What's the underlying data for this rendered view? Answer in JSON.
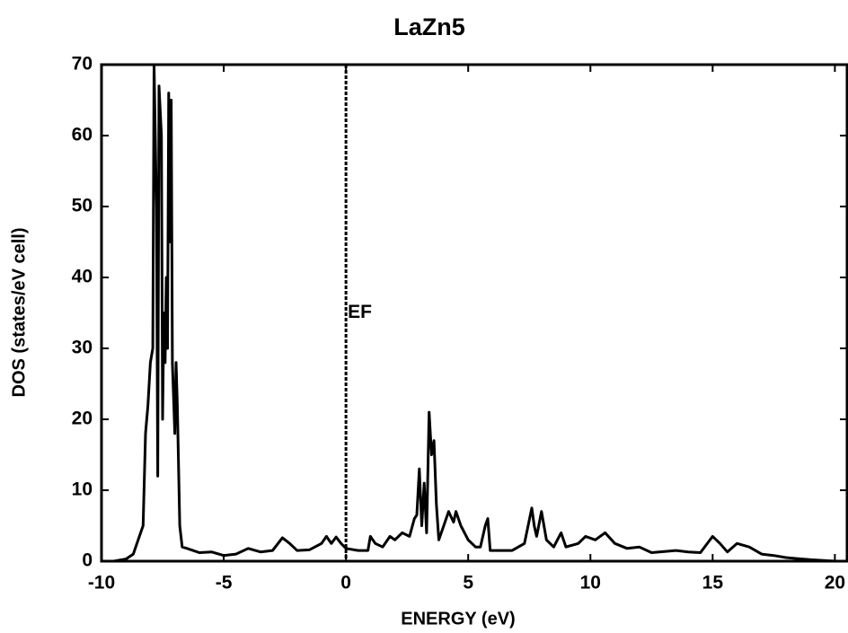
{
  "chart_data": {
    "type": "line",
    "title": "LaZn5",
    "x_label": "ENERGY (eV)",
    "y_label": "DOS (states/eV cell)",
    "color": "#000000",
    "xlim": [
      -10,
      20.5
    ],
    "ylim": [
      0,
      70
    ],
    "xticks": [
      -10,
      -5,
      0,
      5,
      10,
      15,
      20
    ],
    "yticks": [
      0,
      10,
      20,
      30,
      40,
      50,
      60,
      70
    ],
    "grid": false,
    "annotations": [
      {
        "text": "EF",
        "x": 0,
        "y": 35
      }
    ],
    "x": [
      -10,
      -9.5,
      -9,
      -8.7,
      -8.5,
      -8.3,
      -8.2,
      -8.1,
      -8.0,
      -7.9,
      -7.85,
      -7.75,
      -7.7,
      -7.65,
      -7.55,
      -7.5,
      -7.45,
      -7.4,
      -7.35,
      -7.3,
      -7.25,
      -7.2,
      -7.15,
      -7.1,
      -7.0,
      -6.95,
      -6.9,
      -6.8,
      -6.7,
      -6.5,
      -6.0,
      -5.5,
      -5.0,
      -4.5,
      -4.0,
      -3.5,
      -3.0,
      -2.6,
      -2.3,
      -2.0,
      -1.5,
      -1.0,
      -0.8,
      -0.6,
      -0.4,
      -0.2,
      0,
      0.5,
      0.9,
      1.0,
      1.2,
      1.5,
      1.8,
      2.0,
      2.3,
      2.6,
      2.8,
      2.9,
      3.0,
      3.1,
      3.2,
      3.3,
      3.4,
      3.5,
      3.6,
      3.7,
      3.8,
      4.0,
      4.2,
      4.4,
      4.5,
      4.7,
      5.0,
      5.3,
      5.5,
      5.7,
      5.8,
      5.9,
      6.3,
      6.8,
      7.3,
      7.6,
      7.7,
      7.8,
      8.0,
      8.2,
      8.5,
      8.8,
      9.0,
      9.5,
      9.8,
      10.2,
      10.6,
      11.0,
      11.5,
      12.0,
      12.5,
      13.5,
      14.0,
      14.5,
      15.0,
      15.3,
      15.6,
      16.0,
      16.5,
      17.0,
      17.5,
      18.0,
      19.0,
      20.0,
      20.5
    ],
    "values": [
      0,
      0,
      0.3,
      1,
      3,
      5,
      18,
      22,
      28,
      30,
      70,
      50,
      12,
      67,
      60,
      20,
      35,
      28,
      40,
      30,
      66,
      45,
      65,
      28,
      18,
      28,
      22,
      5,
      2,
      1.8,
      1.2,
      1.3,
      0.8,
      1,
      1.8,
      1.3,
      1.5,
      3.3,
      2.5,
      1.5,
      1.6,
      2.5,
      3.5,
      2.5,
      3.4,
      2.5,
      1.8,
      1.5,
      1.5,
      3.5,
      2.5,
      2.0,
      3.5,
      3,
      4,
      3.5,
      6,
      6.5,
      13,
      5,
      11,
      4,
      21,
      15,
      17,
      8,
      3,
      5,
      7,
      5.5,
      7,
      5,
      3,
      2,
      2,
      5,
      6,
      1.5,
      1.5,
      1.5,
      2.5,
      7.5,
      5,
      3.5,
      7,
      3,
      2,
      4,
      2,
      2.5,
      3.5,
      3,
      4,
      2.5,
      1.8,
      2,
      1.2,
      1.5,
      1.3,
      1.2,
      3.5,
      2.5,
      1.3,
      2.5,
      2,
      1,
      0.8,
      0.5,
      0.2,
      0,
      0
    ]
  }
}
